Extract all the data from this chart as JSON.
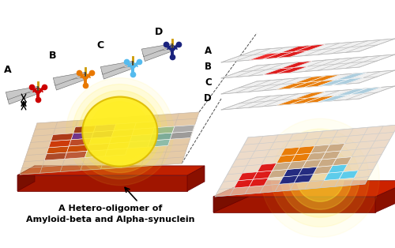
{
  "background_color": "#ffffff",
  "label_A": "A",
  "label_B": "B",
  "label_C": "C",
  "label_D": "D",
  "antibody_colors": [
    "#cc0000",
    "#e87800",
    "#55bbee",
    "#1a237e"
  ],
  "caption_line1": "A Hetero-oligomer of",
  "caption_line2": "Amyloid-beta and Alpha-synuclein",
  "grid_color": "#bbbbbb",
  "chip_base_color": "#8b1a00",
  "arrow_color": "#777777",
  "row_labels": [
    "A",
    "B",
    "C",
    "D"
  ],
  "red_color": "#dd1111",
  "orange_color": "#e87800",
  "cyan_color": "#55ccee",
  "navy_color": "#1a237e",
  "purple_color": "#6b2d8b",
  "tan_color": "#c8a882",
  "yellow_color": "#ffdd44"
}
